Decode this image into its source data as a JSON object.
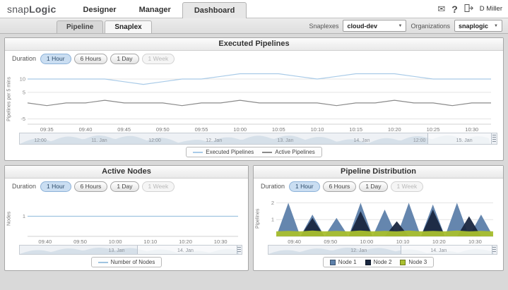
{
  "header": {
    "logo_snap": "snap",
    "logo_logic": "Logic",
    "nav": [
      {
        "label": "Designer"
      },
      {
        "label": "Manager"
      },
      {
        "label": "Dashboard"
      }
    ],
    "help_label": "?",
    "user_name": "D Miller"
  },
  "subnav": {
    "tabs": [
      {
        "label": "Pipeline"
      },
      {
        "label": "Snaplex"
      }
    ],
    "snaplexes_label": "Snaplexes",
    "snaplexes_value": "cloud-dev",
    "organizations_label": "Organizations",
    "organizations_value": "snaplogic"
  },
  "panels": {
    "executed": {
      "title": "Executed Pipelines",
      "duration_label": "Duration",
      "durations": [
        "1 Hour",
        "6 Hours",
        "1 Day",
        "1 Week"
      ],
      "active_duration": "1 Hour",
      "brush_labels": [
        "12:00",
        "11. Jan",
        "12:00",
        "12. Jan",
        "13. Jan",
        "14. Jan",
        "12:00",
        "15. Jan"
      ]
    },
    "nodes": {
      "title": "Active Nodes",
      "duration_label": "Duration",
      "durations": [
        "1 Hour",
        "6 Hours",
        "1 Day",
        "1 Week"
      ],
      "active_duration": "1 Hour",
      "brush_labels": [
        "13. Jan",
        "14. Jan"
      ]
    },
    "distribution": {
      "title": "Pipeline Distribution",
      "duration_label": "Duration",
      "durations": [
        "1 Hour",
        "6 Hours",
        "1 Day",
        "1 Week"
      ],
      "active_duration": "1 Hour",
      "brush_labels": [
        "12. Jan",
        "14. Jan"
      ]
    }
  },
  "colors": {
    "active_pill_bg": "#cadef2",
    "active_pill_border": "#8db2d8",
    "executed_line": "#a9cbe8",
    "active_line": "#8a8a8a",
    "node1": "#5d80aa",
    "node2": "#1a2740",
    "node3": "#a9bf2e"
  },
  "chart_data": [
    {
      "id": "executed-pipelines",
      "type": "line",
      "title": "Executed Pipelines",
      "ylabel": "Pipelines per 5 mins",
      "x_ticks": [
        "09:35",
        "09:40",
        "09:45",
        "09:50",
        "09:55",
        "10:00",
        "10:05",
        "10:10",
        "10:15",
        "10:20",
        "10:25",
        "10:30"
      ],
      "ylim": [
        -7,
        14
      ],
      "yticks": [
        10,
        5,
        -5
      ],
      "grid": true,
      "legend_position": "bottom",
      "series": [
        {
          "name": "Executed Pipelines",
          "color": "#a9cbe8",
          "values": [
            10,
            10,
            10,
            10,
            10,
            9,
            8,
            9,
            10,
            10,
            11,
            12,
            12,
            12,
            11,
            10,
            11,
            12,
            12,
            12,
            11,
            10,
            10,
            10,
            10
          ]
        },
        {
          "name": "Active Pipelines",
          "color": "#8a8a8a",
          "values": [
            1,
            0,
            1,
            1,
            2,
            1,
            1,
            1,
            0,
            1,
            1,
            2,
            1,
            1,
            1,
            1,
            0,
            1,
            1,
            2,
            1,
            1,
            0,
            1,
            1
          ]
        }
      ]
    },
    {
      "id": "active-nodes",
      "type": "line",
      "title": "Active Nodes",
      "ylabel": "Nodes",
      "x_ticks": [
        "09:40",
        "09:50",
        "10:00",
        "10:10",
        "10:20",
        "10:30"
      ],
      "ylim": [
        0,
        2
      ],
      "yticks": [
        1
      ],
      "grid": true,
      "legend_position": "bottom",
      "series": [
        {
          "name": "Number of Nodes",
          "color": "#9fc4e0",
          "values": [
            1,
            1,
            1,
            1,
            1,
            1,
            1,
            1,
            1,
            1,
            1,
            1,
            1
          ]
        }
      ]
    },
    {
      "id": "pipeline-distribution",
      "type": "area",
      "title": "Pipeline Distribution",
      "ylabel": "Pipelines",
      "x_ticks": [
        "09:40",
        "09:50",
        "10:00",
        "10:10",
        "10:20",
        "10:30"
      ],
      "ylim": [
        0,
        2.4
      ],
      "yticks": [
        1,
        2
      ],
      "grid": true,
      "legend_position": "bottom",
      "series": [
        {
          "name": "Node 1",
          "color": "#5d80aa",
          "values": [
            0,
            2,
            0,
            1.3,
            0,
            1.1,
            0,
            2,
            0,
            1.6,
            0,
            2,
            0,
            1.9,
            0,
            2,
            0,
            1.3,
            0
          ]
        },
        {
          "name": "Node 2",
          "color": "#1a2740",
          "values": [
            0,
            0,
            0,
            1.1,
            0,
            0,
            0,
            1.5,
            0,
            0,
            0.9,
            0,
            0,
            1.6,
            0,
            0,
            1.2,
            0,
            0
          ]
        },
        {
          "name": "Node 3",
          "color": "#a9bf2e",
          "values": [
            0.3,
            0.33,
            0.3,
            0.35,
            0.3,
            0.33,
            0.3,
            0.35,
            0.3,
            0.33,
            0.3,
            0.35,
            0.3,
            0.33,
            0.3,
            0.35,
            0.3,
            0.33,
            0.3
          ]
        }
      ]
    }
  ]
}
